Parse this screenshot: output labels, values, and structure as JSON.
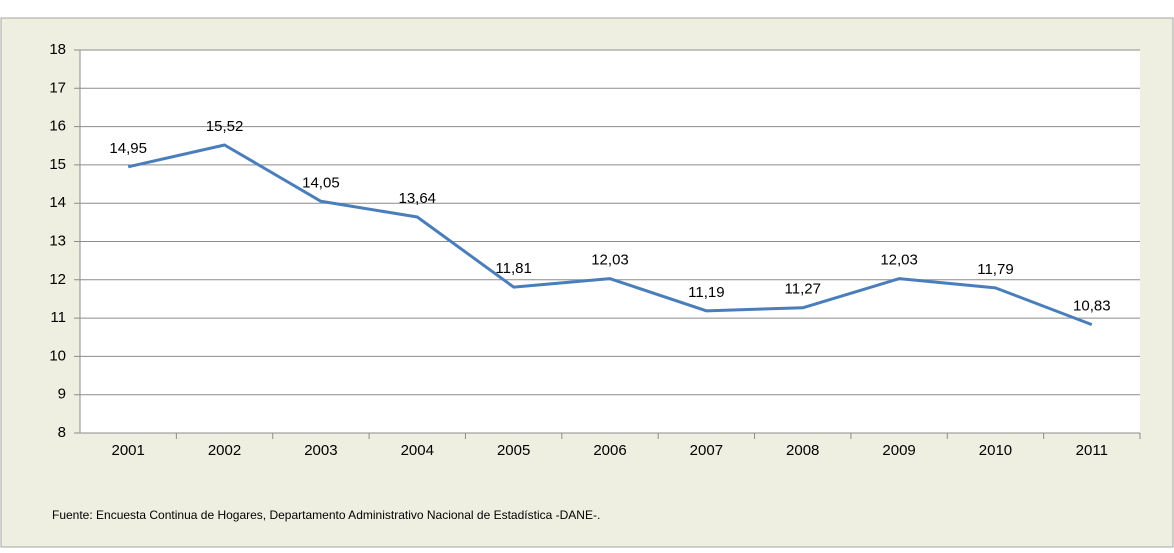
{
  "chart_data": {
    "type": "line",
    "categories": [
      "2001",
      "2002",
      "2003",
      "2004",
      "2005",
      "2006",
      "2007",
      "2008",
      "2009",
      "2010",
      "2011"
    ],
    "series": [
      {
        "color": "#4a7ebb",
        "values": [
          14.95,
          15.52,
          14.05,
          13.64,
          11.81,
          12.03,
          11.19,
          11.27,
          12.03,
          11.79,
          10.83
        ],
        "value_labels": [
          "14,95",
          "15,52",
          "14,05",
          "13,64",
          "11,81",
          "12,03",
          "11,19",
          "11,27",
          "12,03",
          "11,79",
          "10,83"
        ]
      }
    ],
    "ylim": [
      8,
      18
    ],
    "yticks": [
      8,
      9,
      10,
      11,
      12,
      13,
      14,
      15,
      16,
      17,
      18
    ],
    "grid": true,
    "note": "Fuente: Encuesta Continua de Hogares, Departamento Administrativo Nacional de Estadística -DANE-."
  }
}
